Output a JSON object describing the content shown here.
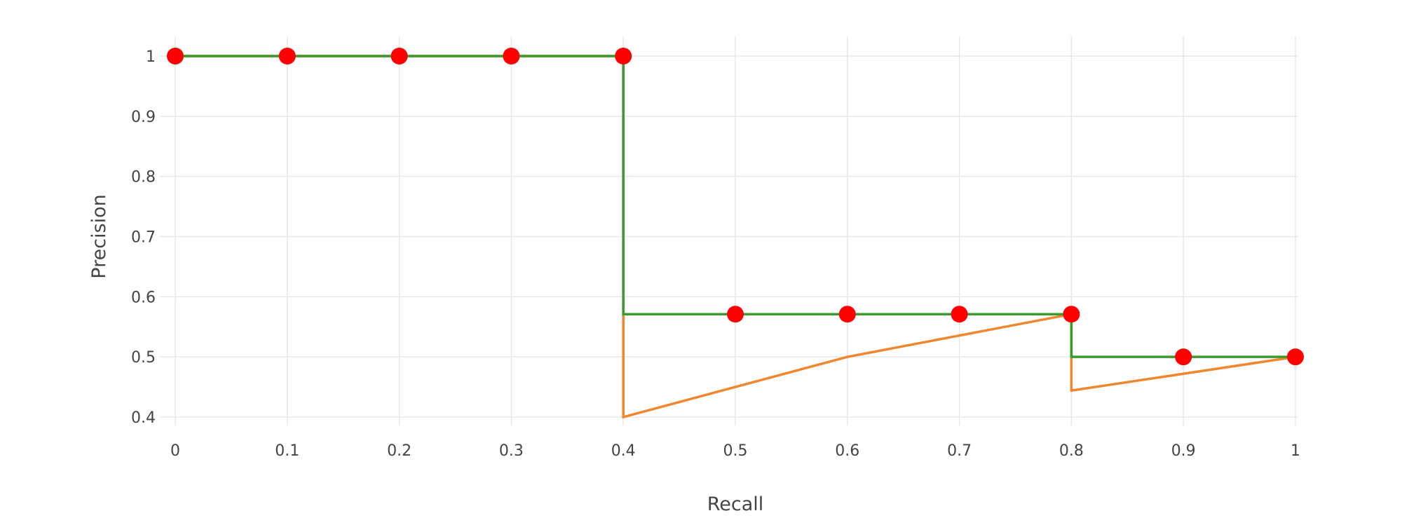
{
  "chart_data": {
    "type": "line",
    "title": "",
    "xlabel": "Recall",
    "ylabel": "Precision",
    "xlim": [
      0,
      1
    ],
    "ylim": [
      0.4,
      1
    ],
    "grid": true,
    "legend": "none",
    "x_ticks": [
      0,
      0.1,
      0.2,
      0.3,
      0.4,
      0.5,
      0.6,
      0.7,
      0.8,
      0.9,
      1
    ],
    "x_tick_labels": [
      "0",
      "0.1",
      "0.2",
      "0.3",
      "0.4",
      "0.5",
      "0.6",
      "0.7",
      "0.8",
      "0.9",
      "1"
    ],
    "y_ticks": [
      0.4,
      0.5,
      0.6,
      0.7,
      0.8,
      0.9,
      1
    ],
    "y_tick_labels": [
      "0.4",
      "0.5",
      "0.6",
      "0.7",
      "0.8",
      "0.9",
      "1"
    ],
    "series": [
      {
        "kind": "line",
        "color": "#f0862d",
        "x": [
          0,
          0.4,
          0.4,
          0.6,
          0.8,
          0.8,
          1
        ],
        "y": [
          1,
          1,
          0.4,
          0.5,
          0.571,
          0.444,
          0.5
        ]
      },
      {
        "kind": "line",
        "color": "#3b9a2e",
        "x": [
          0,
          0.4,
          0.4,
          0.8,
          0.8,
          1
        ],
        "y": [
          1,
          1,
          0.571,
          0.571,
          0.5,
          0.5
        ]
      },
      {
        "kind": "markers",
        "color": "#ff0000",
        "x": [
          0,
          0.1,
          0.2,
          0.3,
          0.4,
          0.5,
          0.6,
          0.7,
          0.8,
          0.9,
          1
        ],
        "y": [
          1,
          1,
          1,
          1,
          1,
          0.571,
          0.571,
          0.571,
          0.571,
          0.5,
          0.5
        ]
      }
    ]
  }
}
